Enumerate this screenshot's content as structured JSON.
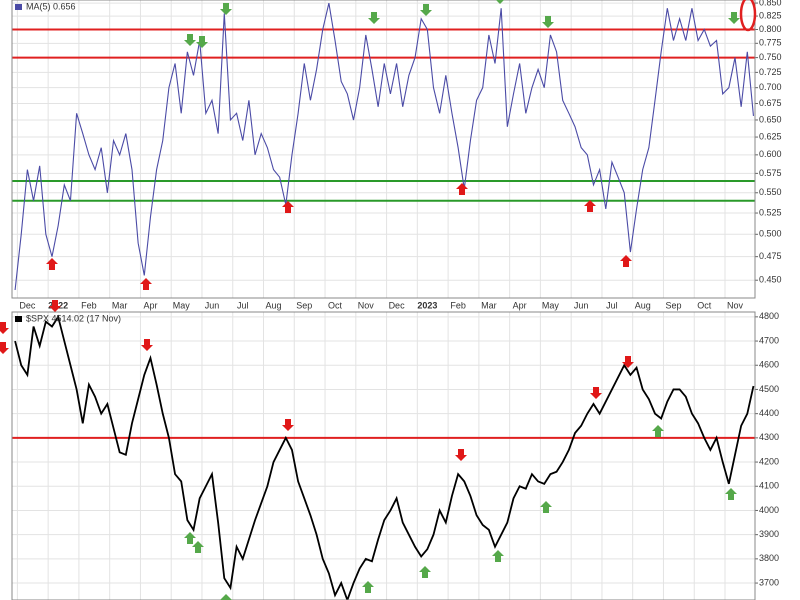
{
  "chart_data": [
    {
      "type": "line",
      "ylog": true,
      "grid": true,
      "ylim": [
        0.432,
        0.856
      ],
      "yticks": [
        {
          "value": 0.45,
          "label": "0.450"
        },
        {
          "value": 0.475,
          "label": "0.475"
        },
        {
          "value": 0.5,
          "label": "0.500"
        },
        {
          "value": 0.525,
          "label": "0.525"
        },
        {
          "value": 0.55,
          "label": "0.550"
        },
        {
          "value": 0.575,
          "label": "0.575"
        },
        {
          "value": 0.6,
          "label": "0.600"
        },
        {
          "value": 0.625,
          "label": "0.625"
        },
        {
          "value": 0.65,
          "label": "0.650"
        },
        {
          "value": 0.675,
          "label": "0.675"
        },
        {
          "value": 0.7,
          "label": "0.700"
        },
        {
          "value": 0.725,
          "label": "0.725"
        },
        {
          "value": 0.75,
          "label": "0.750"
        },
        {
          "value": 0.775,
          "label": "0.775"
        },
        {
          "value": 0.8,
          "label": "0.800"
        },
        {
          "value": 0.825,
          "label": "0.825"
        },
        {
          "value": 0.85,
          "label": "0.850"
        }
      ],
      "xlim": [
        -0.5,
        23.65
      ],
      "xticks": [
        {
          "value": 0,
          "label": "Dec"
        },
        {
          "value": 1,
          "label": "2022"
        },
        {
          "value": 2,
          "label": "Feb"
        },
        {
          "value": 3,
          "label": "Mar"
        },
        {
          "value": 4,
          "label": "Apr"
        },
        {
          "value": 5,
          "label": "May"
        },
        {
          "value": 6,
          "label": "Jun"
        },
        {
          "value": 7,
          "label": "Jul"
        },
        {
          "value": 8,
          "label": "Aug"
        },
        {
          "value": 9,
          "label": "Sep"
        },
        {
          "value": 10,
          "label": "Oct"
        },
        {
          "value": 11,
          "label": "Nov"
        },
        {
          "value": 12,
          "label": "Dec"
        },
        {
          "value": 13,
          "label": "2023"
        },
        {
          "value": 14,
          "label": "Feb"
        },
        {
          "value": 15,
          "label": "Mar"
        },
        {
          "value": 16,
          "label": "Apr"
        },
        {
          "value": 17,
          "label": "May"
        },
        {
          "value": 18,
          "label": "Jun"
        },
        {
          "value": 19,
          "label": "Jul"
        },
        {
          "value": 20,
          "label": "Aug"
        },
        {
          "value": 21,
          "label": "Sep"
        },
        {
          "value": 22,
          "label": "Oct"
        },
        {
          "value": 23,
          "label": "Nov"
        }
      ],
      "hlines": [
        {
          "value": 0.8,
          "color": "#e02020"
        },
        {
          "value": 0.75,
          "color": "#e02020"
        },
        {
          "value": 0.565,
          "color": "#2a9a2a"
        },
        {
          "value": 0.54,
          "color": "#2a9a2a"
        }
      ],
      "x": [
        -0.4,
        -0.2,
        0,
        0.2,
        0.4,
        0.6,
        0.8,
        1,
        1.2,
        1.4,
        1.6,
        1.8,
        2,
        2.2,
        2.4,
        2.6,
        2.8,
        3,
        3.2,
        3.4,
        3.6,
        3.8,
        4,
        4.2,
        4.4,
        4.6,
        4.8,
        5,
        5.2,
        5.4,
        5.6,
        5.8,
        6,
        6.2,
        6.4,
        6.6,
        6.8,
        7,
        7.2,
        7.4,
        7.6,
        7.8,
        8,
        8.2,
        8.4,
        8.6,
        8.8,
        9,
        9.2,
        9.4,
        9.6,
        9.8,
        10,
        10.2,
        10.4,
        10.6,
        10.8,
        11,
        11.2,
        11.4,
        11.6,
        11.8,
        12,
        12.2,
        12.4,
        12.6,
        12.8,
        13,
        13.2,
        13.4,
        13.6,
        13.8,
        14,
        14.2,
        14.4,
        14.6,
        14.8,
        15,
        15.2,
        15.4,
        15.6,
        15.8,
        16,
        16.2,
        16.4,
        16.6,
        16.8,
        17,
        17.2,
        17.4,
        17.6,
        17.8,
        18,
        18.2,
        18.4,
        18.6,
        18.8,
        19,
        19.2,
        19.4,
        19.6,
        19.8,
        20,
        20.2,
        20.4,
        20.6,
        20.8,
        21,
        21.2,
        21.4,
        21.6,
        21.8,
        22,
        22.2,
        22.4,
        22.6,
        22.8,
        23,
        23.2,
        23.4,
        23.6
      ],
      "series": [
        {
          "name": "MA(5) 0.656",
          "color": "#4b4ba6",
          "values": [
            0.44,
            0.5,
            0.58,
            0.54,
            0.585,
            0.5,
            0.475,
            0.51,
            0.56,
            0.54,
            0.66,
            0.63,
            0.6,
            0.58,
            0.61,
            0.55,
            0.62,
            0.6,
            0.63,
            0.58,
            0.49,
            0.455,
            0.52,
            0.58,
            0.62,
            0.7,
            0.74,
            0.66,
            0.76,
            0.72,
            0.78,
            0.66,
            0.68,
            0.63,
            0.83,
            0.65,
            0.66,
            0.62,
            0.68,
            0.6,
            0.63,
            0.61,
            0.58,
            0.57,
            0.535,
            0.6,
            0.66,
            0.74,
            0.68,
            0.73,
            0.8,
            0.85,
            0.78,
            0.71,
            0.69,
            0.65,
            0.7,
            0.79,
            0.73,
            0.67,
            0.74,
            0.69,
            0.74,
            0.67,
            0.72,
            0.75,
            0.82,
            0.8,
            0.7,
            0.66,
            0.72,
            0.66,
            0.61,
            0.555,
            0.62,
            0.68,
            0.7,
            0.79,
            0.74,
            0.84,
            0.64,
            0.69,
            0.74,
            0.66,
            0.7,
            0.73,
            0.7,
            0.79,
            0.76,
            0.68,
            0.66,
            0.64,
            0.61,
            0.6,
            0.56,
            0.58,
            0.53,
            0.59,
            0.57,
            0.55,
            0.48,
            0.53,
            0.58,
            0.61,
            0.68,
            0.76,
            0.84,
            0.78,
            0.82,
            0.78,
            0.84,
            0.78,
            0.8,
            0.77,
            0.78,
            0.69,
            0.7,
            0.75,
            0.67,
            0.76,
            0.656
          ]
        }
      ]
    },
    {
      "type": "line",
      "grid": true,
      "ylim": [
        3630,
        4820
      ],
      "yticks": [
        3700,
        3800,
        3900,
        4000,
        4100,
        4200,
        4300,
        4400,
        4500,
        4600,
        4700,
        4800
      ],
      "xlim": [
        -0.5,
        23.65
      ],
      "hlines": [
        {
          "value": 4300,
          "color": "#e02020"
        }
      ],
      "x": [
        -0.4,
        -0.2,
        0,
        0.2,
        0.4,
        0.6,
        0.8,
        1,
        1.2,
        1.4,
        1.6,
        1.8,
        2,
        2.2,
        2.4,
        2.6,
        2.8,
        3,
        3.2,
        3.4,
        3.6,
        3.8,
        4,
        4.2,
        4.4,
        4.6,
        4.8,
        5,
        5.2,
        5.4,
        5.6,
        5.8,
        6,
        6.2,
        6.4,
        6.6,
        6.8,
        7,
        7.2,
        7.4,
        7.6,
        7.8,
        8,
        8.2,
        8.4,
        8.6,
        8.8,
        9,
        9.2,
        9.4,
        9.6,
        9.8,
        10,
        10.2,
        10.4,
        10.6,
        10.8,
        11,
        11.2,
        11.4,
        11.6,
        11.8,
        12,
        12.2,
        12.4,
        12.6,
        12.8,
        13,
        13.2,
        13.4,
        13.6,
        13.8,
        14,
        14.2,
        14.4,
        14.6,
        14.8,
        15,
        15.2,
        15.4,
        15.6,
        15.8,
        16,
        16.2,
        16.4,
        16.6,
        16.8,
        17,
        17.2,
        17.4,
        17.6,
        17.8,
        18,
        18.2,
        18.4,
        18.6,
        18.8,
        19,
        19.2,
        19.4,
        19.6,
        19.8,
        20,
        20.2,
        20.4,
        20.6,
        20.8,
        21,
        21.2,
        21.4,
        21.6,
        21.8,
        22,
        22.2,
        22.4,
        22.6,
        22.8,
        23,
        23.2,
        23.4,
        23.6
      ],
      "series": [
        {
          "name": "$SPX 4514.02 (17 Nov)",
          "color": "#000000",
          "values": [
            4700,
            4600,
            4560,
            4760,
            4680,
            4780,
            4760,
            4800,
            4700,
            4600,
            4500,
            4360,
            4520,
            4470,
            4400,
            4440,
            4340,
            4240,
            4230,
            4360,
            4460,
            4560,
            4630,
            4520,
            4400,
            4300,
            4150,
            4120,
            3960,
            3920,
            4050,
            4100,
            4150,
            3950,
            3720,
            3680,
            3850,
            3800,
            3880,
            3960,
            4030,
            4100,
            4200,
            4250,
            4300,
            4250,
            4120,
            4050,
            3980,
            3900,
            3800,
            3740,
            3650,
            3700,
            3630,
            3700,
            3760,
            3800,
            3790,
            3880,
            3960,
            4000,
            4050,
            3950,
            3900,
            3850,
            3810,
            3840,
            3900,
            4000,
            3950,
            4060,
            4150,
            4120,
            4060,
            3980,
            3940,
            3920,
            3850,
            3900,
            3950,
            4050,
            4100,
            4090,
            4150,
            4120,
            4110,
            4150,
            4160,
            4200,
            4250,
            4320,
            4350,
            4400,
            4440,
            4400,
            4450,
            4500,
            4550,
            4600,
            4560,
            4590,
            4500,
            4460,
            4400,
            4380,
            4450,
            4500,
            4500,
            4470,
            4400,
            4360,
            4300,
            4250,
            4300,
            4200,
            4110,
            4230,
            4350,
            4400,
            4514.02
          ]
        }
      ]
    }
  ]
}
